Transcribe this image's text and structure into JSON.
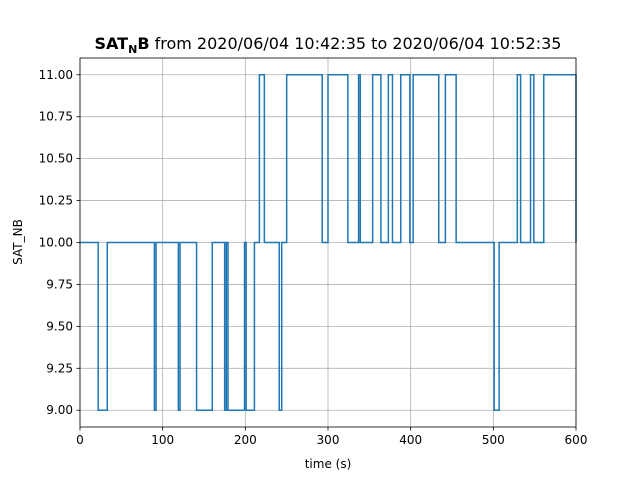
{
  "chart_data": {
    "type": "line",
    "step": "post",
    "title": {
      "bold_main": "SAT",
      "bold_subscript": "N",
      "bold_suffix": "B",
      "rest": " from 2020/06/04 10:42:35 to 2020/06/04 10:52:35"
    },
    "xlabel": "time (s)",
    "ylabel": "SAT_NB",
    "xlim": [
      0,
      600
    ],
    "ylim": [
      8.9,
      11.1
    ],
    "xticks": [
      0,
      100,
      200,
      300,
      400,
      500,
      600
    ],
    "xtick_labels": [
      "0",
      "100",
      "200",
      "300",
      "400",
      "500",
      "600"
    ],
    "yticks": [
      9.0,
      9.25,
      9.5,
      9.75,
      10.0,
      10.25,
      10.5,
      10.75,
      11.0
    ],
    "ytick_labels": [
      "9.00",
      "9.25",
      "9.50",
      "9.75",
      "10.00",
      "10.25",
      "10.50",
      "10.75",
      "11.00"
    ],
    "grid": true,
    "color": "#1f77b4",
    "series": [
      {
        "x": [
          0,
          22,
          33,
          90,
          92,
          119,
          121,
          141,
          160,
          175,
          177,
          179,
          199,
          201,
          211,
          217,
          223,
          241,
          244,
          250,
          293,
          300,
          324,
          337,
          339,
          354,
          364,
          373,
          378,
          388,
          399,
          403,
          434,
          442,
          455,
          501,
          507,
          529,
          533,
          545,
          549,
          561,
          600
        ],
        "y": [
          10,
          9,
          10,
          9,
          10,
          9,
          10,
          9,
          10,
          9,
          10,
          9,
          10,
          9,
          10,
          11,
          10,
          9,
          10,
          11,
          10,
          11,
          10,
          11,
          10,
          11,
          10,
          11,
          10,
          11,
          10,
          11,
          10,
          11,
          10,
          9,
          10,
          11,
          10,
          11,
          10,
          11,
          10
        ]
      }
    ]
  }
}
